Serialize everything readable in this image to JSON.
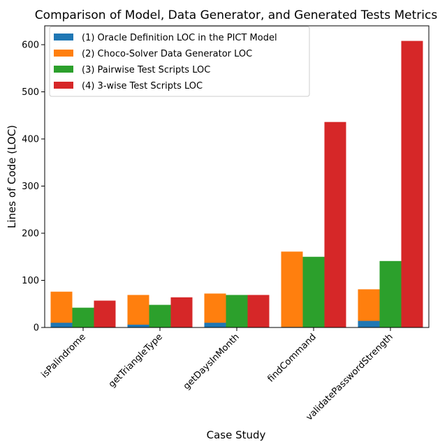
{
  "chart_data": {
    "type": "bar",
    "title": "Comparison of Model, Data Generator, and Generated Tests Metrics",
    "xlabel": "Case Study",
    "ylabel": "Lines of Code (LOC)",
    "ylim": [
      0,
      640
    ],
    "yticks": [
      0,
      100,
      200,
      300,
      400,
      500,
      600
    ],
    "grid": false,
    "legend_position": "top-left",
    "categories": [
      "isPalindrome",
      "getTriangleType",
      "getDaysInMonth",
      "findCommand",
      "validatePasswordStrength"
    ],
    "series": [
      {
        "name": "(1) Oracle Definition LOC in the PICT Model",
        "color": "#1f77b4",
        "values": [
          10,
          6,
          10,
          1,
          14
        ]
      },
      {
        "name": "(2) Choco-Solver Data Generator LOC",
        "color": "#ff7f0e",
        "values": [
          76,
          69,
          72,
          161,
          81
        ]
      },
      {
        "name": "(3) Pairwise Test Scripts LOC",
        "color": "#2ca02c",
        "values": [
          42,
          48,
          69,
          150,
          141
        ]
      },
      {
        "name": "(4) 3-wise Test Scripts LOC",
        "color": "#d62728",
        "values": [
          57,
          64,
          69,
          436,
          608
        ]
      }
    ]
  }
}
